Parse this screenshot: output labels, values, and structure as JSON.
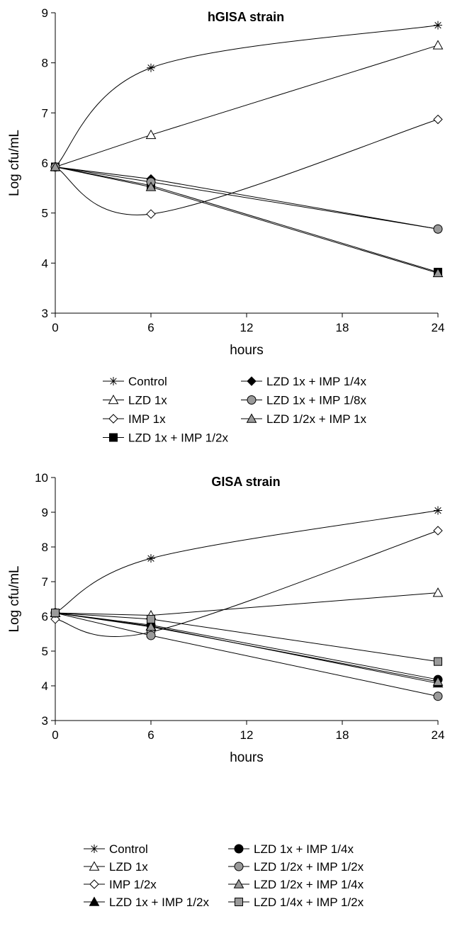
{
  "chart_data": [
    {
      "type": "line",
      "title": "hGISA strain",
      "xlabel": "hours",
      "ylabel": "Log cfu/mL",
      "x": [
        0,
        6,
        24
      ],
      "xticks": [
        0,
        6,
        12,
        18,
        24
      ],
      "yticks": [
        3,
        4,
        5,
        6,
        7,
        8,
        9
      ],
      "xlim": [
        0,
        24
      ],
      "ylim": [
        3,
        9
      ],
      "grid": false,
      "legend_position": "bottom",
      "series": [
        {
          "name": "Control",
          "marker": "star",
          "values": [
            5.92,
            7.9,
            8.75
          ]
        },
        {
          "name": "LZD 1x",
          "marker": "triangle-open",
          "values": [
            5.92,
            6.56,
            8.35
          ]
        },
        {
          "name": "IMP 1x",
          "marker": "diamond-open",
          "values": [
            5.92,
            4.98,
            6.87
          ]
        },
        {
          "name": "LZD 1x + IMP 1/2x",
          "marker": "square-black",
          "values": [
            5.92,
            5.55,
            3.82
          ]
        },
        {
          "name": "LZD 1x + IMP 1/4x",
          "marker": "diamond-black",
          "values": [
            5.92,
            5.68,
            4.68
          ]
        },
        {
          "name": "LZD 1x + IMP 1/8x",
          "marker": "circle-gray",
          "values": [
            5.92,
            5.62,
            4.68
          ]
        },
        {
          "name": "LZD 1/2x + IMP 1x",
          "marker": "triangle-gray",
          "values": [
            5.92,
            5.52,
            3.8
          ]
        }
      ]
    },
    {
      "type": "line",
      "title": "GISA strain",
      "xlabel": "hours",
      "ylabel": "Log cfu/mL",
      "x": [
        0,
        6,
        24
      ],
      "xticks": [
        0,
        6,
        12,
        18,
        24
      ],
      "yticks": [
        3,
        4,
        5,
        6,
        7,
        8,
        9,
        10
      ],
      "xlim": [
        0,
        24
      ],
      "ylim": [
        3,
        10
      ],
      "grid": false,
      "legend_position": "bottom",
      "series": [
        {
          "name": "Control",
          "marker": "star",
          "values": [
            6.1,
            7.67,
            9.05
          ]
        },
        {
          "name": "LZD 1x",
          "marker": "triangle-open",
          "values": [
            6.1,
            6.03,
            6.68
          ]
        },
        {
          "name": "IMP 1/2x",
          "marker": "diamond-open",
          "values": [
            5.92,
            5.55,
            8.47
          ]
        },
        {
          "name": "LZD 1x + IMP 1/2x",
          "marker": "triangle-black",
          "values": [
            6.1,
            5.72,
            4.07
          ]
        },
        {
          "name": "LZD 1x + IMP 1/4x",
          "marker": "circle-black",
          "values": [
            6.1,
            5.75,
            4.18
          ]
        },
        {
          "name": "LZD 1/2x + IMP 1/2x",
          "marker": "circle-gray",
          "values": [
            6.1,
            5.45,
            3.7
          ]
        },
        {
          "name": "LZD 1/2x + IMP 1/4x",
          "marker": "triangle-gray",
          "values": [
            6.1,
            5.7,
            4.12
          ]
        },
        {
          "name": "LZD 1/4x + IMP 1/2x",
          "marker": "square-gray",
          "values": [
            6.1,
            5.92,
            4.7
          ]
        }
      ]
    }
  ]
}
